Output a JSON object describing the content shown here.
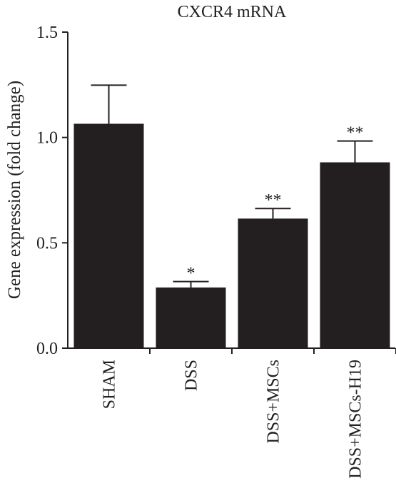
{
  "chart_data": {
    "type": "bar",
    "title": "CXCR4 mRNA",
    "xlabel": "",
    "ylabel": "Gene expression (fold change)",
    "ylim": [
      0,
      1.5
    ],
    "yticks": [
      0.0,
      0.5,
      1.0,
      1.5
    ],
    "ytick_labels": [
      "0.0",
      "0.5",
      "1.0",
      "1.5"
    ],
    "categories": [
      "SHAM",
      "DSS",
      "DSS+MSCs",
      "DSS+MSCs-H19"
    ],
    "values": [
      1.065,
      0.288,
      0.615,
      0.882
    ],
    "errors": [
      0.183,
      0.028,
      0.048,
      0.101
    ],
    "annotations": [
      "",
      "*",
      "**",
      "**"
    ],
    "grid": false,
    "bar_color": "#231f20"
  }
}
